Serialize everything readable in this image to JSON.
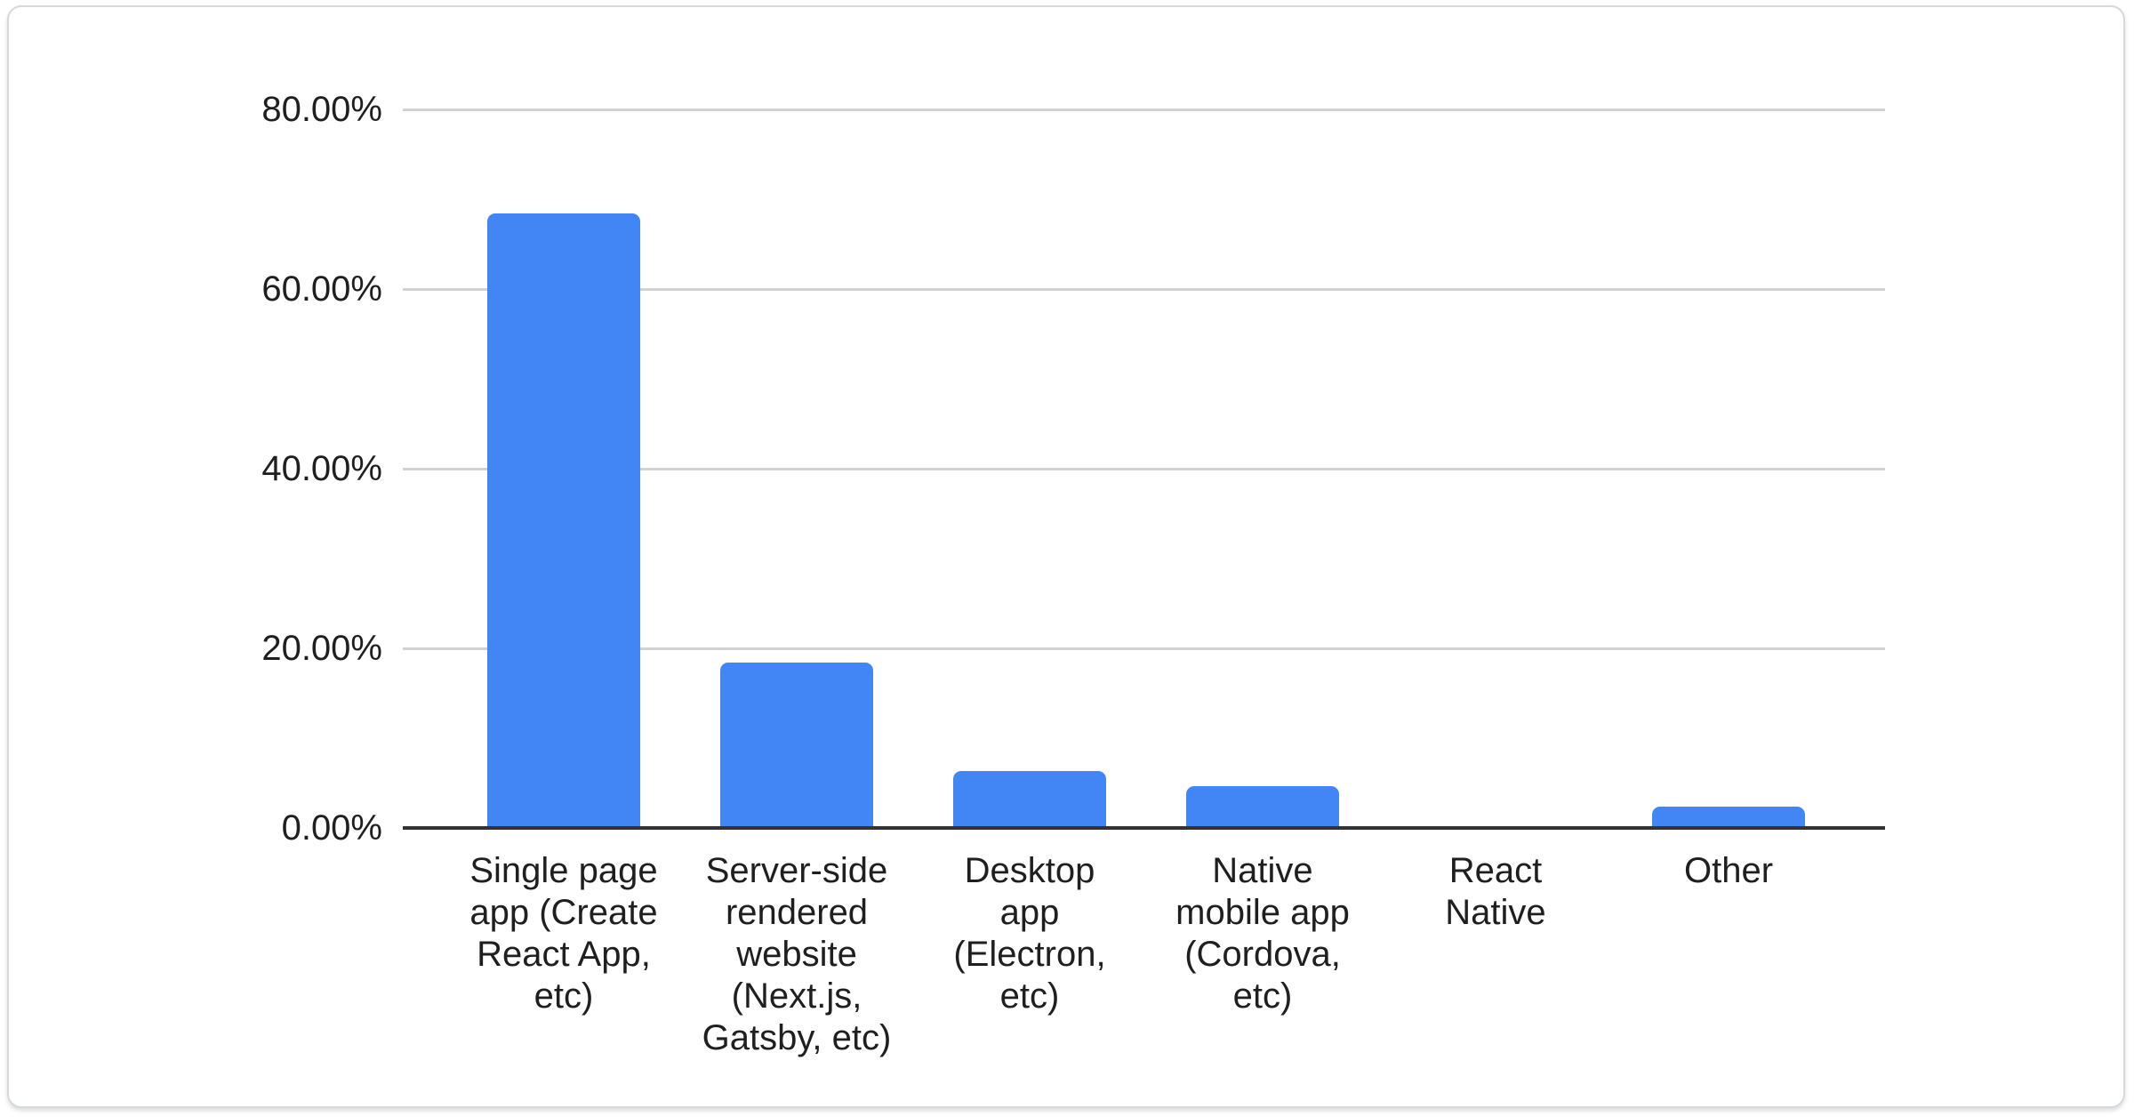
{
  "chart_data": {
    "type": "bar",
    "categories": [
      "Single page app (Create React App, etc)",
      "Server-side rendered website (Next.js, Gatsby, etc)",
      "Desktop app (Electron, etc)",
      "Native mobile app (Cordova, etc)",
      "React Native",
      "Other"
    ],
    "categories_display": [
      "Single page\napp (Create\nReact App,\netc)",
      "Server-side\nrendered\nwebsite\n(Next.js,\nGatsby, etc)",
      "Desktop\napp\n(Electron,\netc)",
      "Native\nmobile app\n(Cordova,\netc)",
      "React\nNative",
      "Other"
    ],
    "values": [
      68.4,
      18.4,
      6.3,
      4.7,
      0,
      2.4
    ],
    "unit": "%",
    "yticks": [
      "80.00%",
      "60.00%",
      "40.00%",
      "20.00%",
      "0.00%"
    ],
    "ylim": [
      0,
      80
    ],
    "xlabel": "",
    "ylabel": "",
    "grid": "horizontal",
    "legend_position": "none",
    "colors": {
      "bar": "#4285f4",
      "axis": "#333333",
      "gridline": "#d2d2d2",
      "label_text": "#1f1f1f",
      "card_border": "#d5d8dc",
      "background": "#ffffff"
    }
  }
}
